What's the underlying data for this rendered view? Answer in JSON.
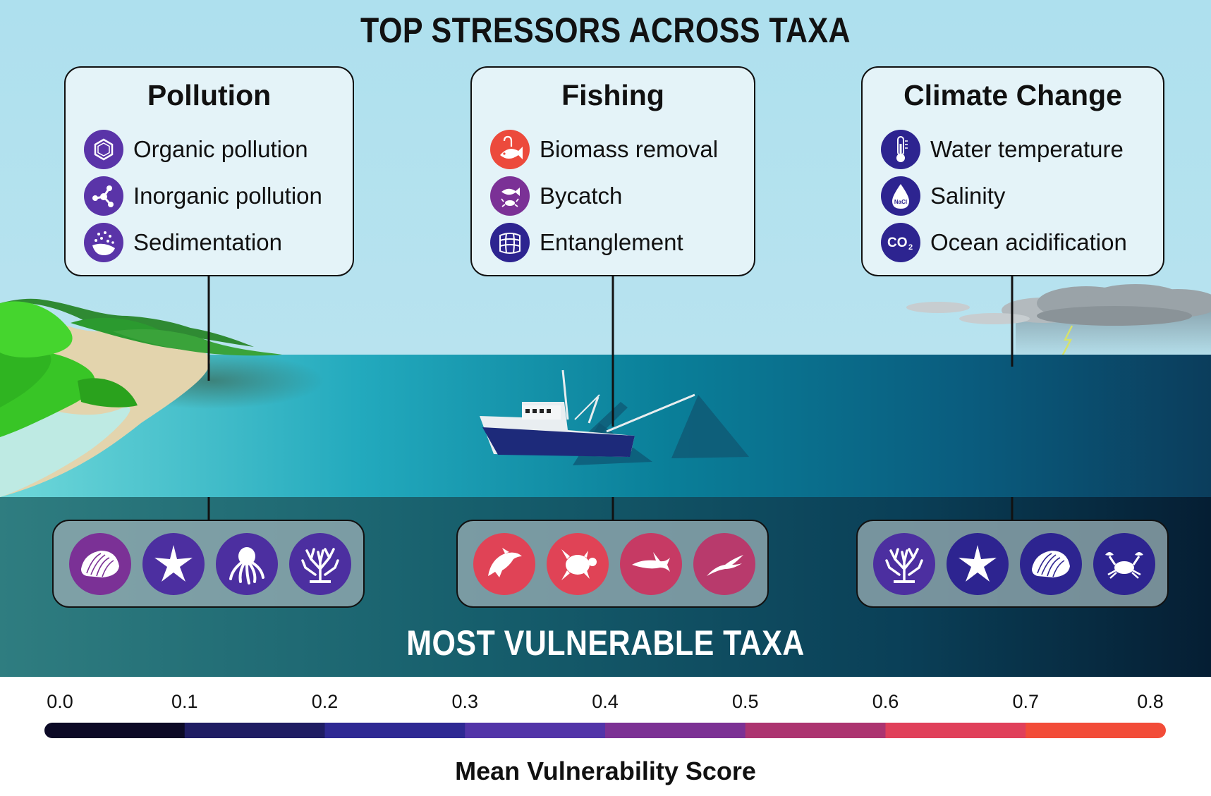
{
  "top_title": "TOP STRESSORS ACROSS TAXA",
  "bottom_title": "MOST VULNERABLE TAXA",
  "stressor_groups": [
    {
      "title": "Pollution",
      "items": [
        {
          "label": "Organic pollution",
          "icon": "benzene-ring-icon",
          "color": "#5a34a8"
        },
        {
          "label": "Inorganic pollution",
          "icon": "molecule-icon",
          "color": "#5a34a8"
        },
        {
          "label": "Sedimentation",
          "icon": "sediment-icon",
          "color": "#5a34a8"
        }
      ],
      "taxa": [
        {
          "icon": "shell-icon",
          "color": "#7b3196"
        },
        {
          "icon": "starfish-icon",
          "color": "#4c2fa0"
        },
        {
          "icon": "octopus-icon",
          "color": "#4c2fa0"
        },
        {
          "icon": "coral-icon",
          "color": "#4c2fa0"
        }
      ]
    },
    {
      "title": "Fishing",
      "items": [
        {
          "label": "Biomass removal",
          "icon": "hooked-fish-icon",
          "color": "#ec4a3c"
        },
        {
          "label": "Bycatch",
          "icon": "fish-and-crab-icon",
          "color": "#7b3196"
        },
        {
          "label": "Entanglement",
          "icon": "net-icon",
          "color": "#2d2490"
        }
      ],
      "taxa": [
        {
          "icon": "dolphin-icon",
          "color": "#e04356"
        },
        {
          "icon": "turtle-icon",
          "color": "#e04356"
        },
        {
          "icon": "shark-icon",
          "color": "#c63a64"
        },
        {
          "icon": "seabird-icon",
          "color": "#b83a6c"
        }
      ]
    },
    {
      "title": "Climate Change",
      "items": [
        {
          "label": "Water temperature",
          "icon": "thermometer-icon",
          "color": "#2d2490"
        },
        {
          "label": "Salinity",
          "icon": "salt-drop-icon",
          "color": "#2d2490"
        },
        {
          "label": "Ocean acidification",
          "icon": "co2-icon",
          "color": "#2d2490"
        }
      ],
      "taxa": [
        {
          "icon": "coral-icon",
          "color": "#4c2fa0"
        },
        {
          "icon": "starfish-icon",
          "color": "#2d2490"
        },
        {
          "icon": "shell-icon",
          "color": "#2d2490"
        },
        {
          "icon": "crab-icon",
          "color": "#2d2490"
        }
      ]
    }
  ],
  "icon_text": {
    "salinity": "NaCl",
    "co2": "CO",
    "co2_sub": "2"
  },
  "colorbar": {
    "label": "Mean Vulnerability Score",
    "ticks": [
      "0.0",
      "0.1",
      "0.2",
      "0.3",
      "0.4",
      "0.5",
      "0.6",
      "0.7",
      "0.8"
    ],
    "segments": [
      "#0c0a26",
      "#1f1d63",
      "#2e2993",
      "#5234a8",
      "#7c3194",
      "#ac3470",
      "#e0405a",
      "#f24c38"
    ]
  }
}
